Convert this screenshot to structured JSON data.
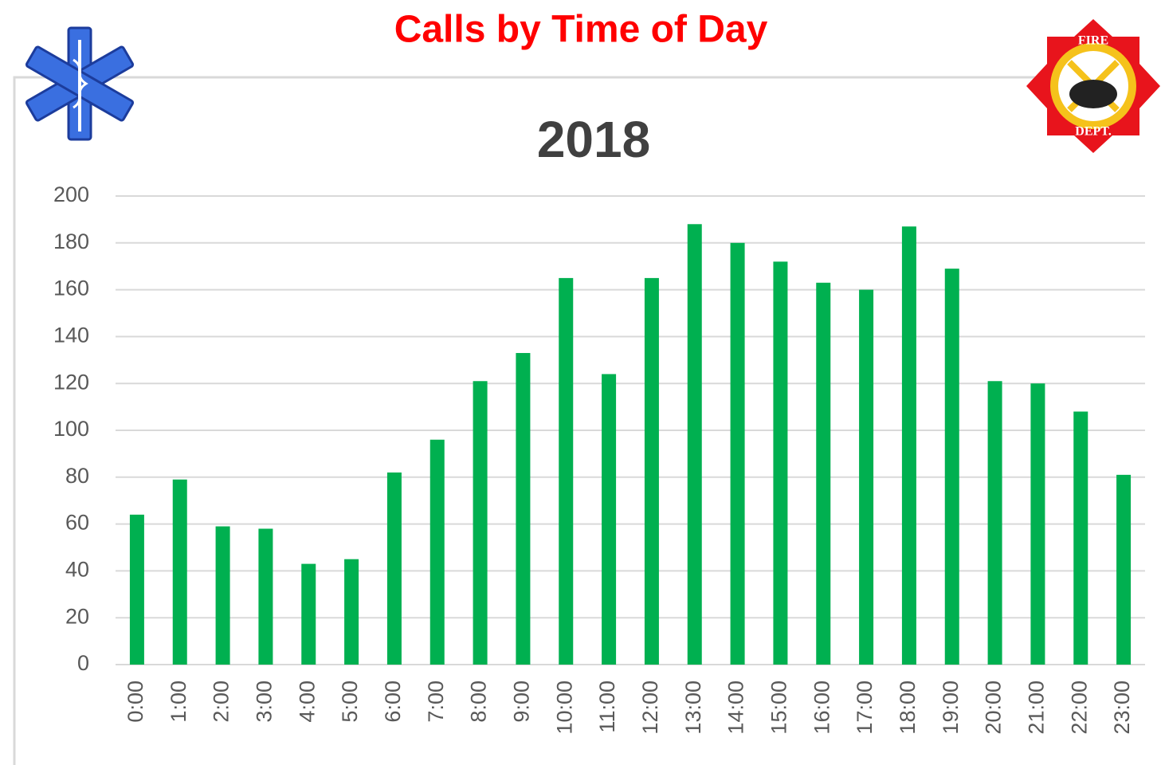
{
  "badge_text": [
    "FIRE",
    "DEPT."
  ],
  "chart_data": {
    "type": "bar",
    "title": "Calls by Time of Day",
    "subtitle": "2018",
    "categories": [
      "0:00",
      "1:00",
      "2:00",
      "3:00",
      "4:00",
      "5:00",
      "6:00",
      "7:00",
      "8:00",
      "9:00",
      "10:00",
      "11:00",
      "12:00",
      "13:00",
      "14:00",
      "15:00",
      "16:00",
      "17:00",
      "18:00",
      "19:00",
      "20:00",
      "21:00",
      "22:00",
      "23:00"
    ],
    "values": [
      64,
      79,
      59,
      58,
      43,
      45,
      82,
      96,
      121,
      133,
      165,
      124,
      165,
      188,
      180,
      172,
      163,
      160,
      187,
      169,
      121,
      120,
      108,
      81
    ],
    "color": "#00b050",
    "ylim": [
      0,
      200
    ],
    "yticks": [
      0,
      20,
      40,
      60,
      80,
      100,
      120,
      140,
      160,
      180,
      200
    ],
    "grid": true
  }
}
